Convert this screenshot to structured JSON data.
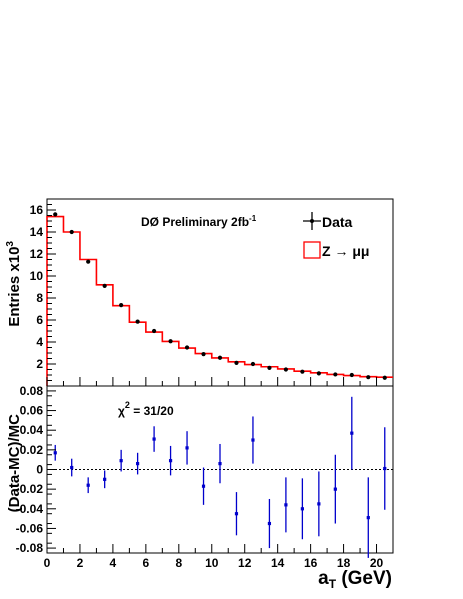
{
  "chart_data": [
    {
      "type": "histogram",
      "title": "",
      "annotation": {
        "main": "DØ Preliminary 2fb",
        "sup": "-1"
      },
      "ylabel": {
        "main": "Entries x10",
        "sup": "3"
      },
      "xlabel": "",
      "xlim": [
        0,
        21
      ],
      "ylim": [
        0,
        17
      ],
      "yticks": [
        2,
        4,
        6,
        8,
        10,
        12,
        14,
        16
      ],
      "yticks_minor": [
        0.5,
        1,
        1.5,
        2.5,
        3,
        3.5,
        4.5,
        5,
        5.5,
        6.5,
        7,
        7.5,
        8.5,
        9,
        9.5,
        10.5,
        11,
        11.5,
        12.5,
        13,
        13.5,
        14.5,
        15,
        15.5,
        16.5
      ],
      "xticks": [
        0,
        2,
        4,
        6,
        8,
        10,
        12,
        14,
        16,
        18,
        20
      ],
      "legend": {
        "position": "top-right",
        "entries": [
          {
            "label": "Data",
            "style": "marker"
          },
          {
            "label": "Z → μμ",
            "style": "red-box"
          }
        ]
      },
      "bin_edges": [
        0,
        1,
        2,
        3,
        4,
        5,
        6,
        7,
        8,
        9,
        10,
        11,
        12,
        13,
        14,
        15,
        16,
        17,
        18,
        19,
        20,
        21
      ],
      "series": [
        {
          "name": "Z → μμ",
          "color": "#ff0000",
          "style": "step",
          "values": [
            15.4,
            14.0,
            11.5,
            9.2,
            7.3,
            5.8,
            4.9,
            4.05,
            3.45,
            2.95,
            2.55,
            2.2,
            1.95,
            1.75,
            1.55,
            1.35,
            1.2,
            1.05,
            0.95,
            0.85,
            0.8
          ]
        },
        {
          "name": "Data",
          "color": "#000000",
          "style": "points",
          "x": [
            0.5,
            1.5,
            2.5,
            3.5,
            4.5,
            5.5,
            6.5,
            7.5,
            8.5,
            9.5,
            10.5,
            11.5,
            12.5,
            13.5,
            14.5,
            15.5,
            16.5,
            17.5,
            18.5,
            19.5,
            20.5
          ],
          "values": [
            15.6,
            14.0,
            11.3,
            9.1,
            7.35,
            5.85,
            5.0,
            4.07,
            3.5,
            2.9,
            2.57,
            2.1,
            2.0,
            1.65,
            1.5,
            1.3,
            1.15,
            1.05,
            1.0,
            0.8,
            0.75
          ]
        }
      ]
    },
    {
      "type": "scatter",
      "title": "",
      "annotation": {
        "main": "χ",
        "sup": "2",
        "rest": " = 31/20"
      },
      "ylabel": "(Data-MC)/MC",
      "xlabel": {
        "main": "a",
        "sub": "T",
        "rest": " (GeV)"
      },
      "xlim": [
        0,
        21
      ],
      "ylim": [
        -0.085,
        0.085
      ],
      "yticks": [
        -0.08,
        -0.06,
        -0.04,
        -0.02,
        0,
        0.02,
        0.04,
        0.06,
        0.08
      ],
      "yticks_labels": [
        "-0.08",
        "-0.06",
        "-0.04",
        "-0.02",
        "0",
        "0.02",
        "0.04",
        "0.06",
        "0.08"
      ],
      "xticks": [
        0,
        2,
        4,
        6,
        8,
        10,
        12,
        14,
        16,
        18,
        20
      ],
      "xticks_labels": [
        "0",
        "2",
        "4",
        "6",
        "8",
        "10",
        "12",
        "14",
        "16",
        "18",
        "20"
      ],
      "reference_line": 0,
      "series": [
        {
          "name": "",
          "color": "#0000cc",
          "x": [
            0.5,
            1.5,
            2.5,
            3.5,
            4.5,
            5.5,
            6.5,
            7.5,
            8.5,
            9.5,
            10.5,
            11.5,
            12.5,
            13.5,
            14.5,
            15.5,
            16.5,
            17.5,
            18.5,
            19.5,
            20.5
          ],
          "values": [
            0.017,
            0.002,
            -0.016,
            -0.01,
            0.009,
            0.006,
            0.031,
            0.009,
            0.022,
            -0.017,
            0.006,
            -0.045,
            0.03,
            -0.055,
            -0.036,
            -0.04,
            -0.035,
            -0.02,
            0.037,
            -0.049,
            0.001
          ],
          "errors": [
            0.008,
            0.009,
            0.008,
            0.009,
            0.011,
            0.011,
            0.013,
            0.015,
            0.017,
            0.019,
            0.02,
            0.022,
            0.024,
            0.025,
            0.028,
            0.031,
            0.033,
            0.035,
            0.037,
            0.041,
            0.042
          ]
        }
      ]
    }
  ]
}
